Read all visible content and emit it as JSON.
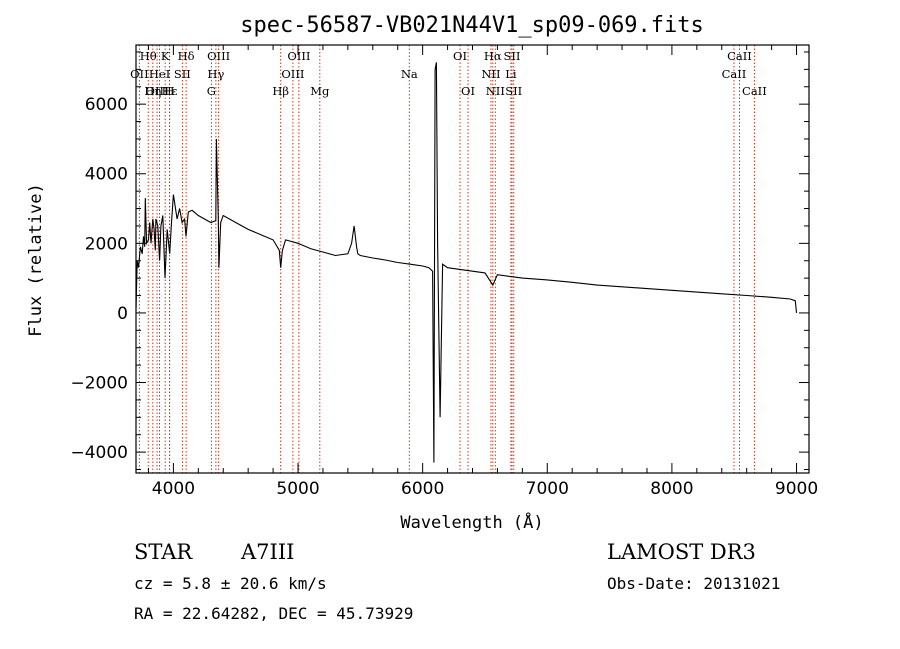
{
  "chart_data": {
    "type": "line",
    "title": "spec-56587-VB021N44V1_sp09-069.fits",
    "xlabel": "Wavelength (Å)",
    "ylabel": "Flux (relative)",
    "xlim": [
      3700,
      9100
    ],
    "ylim": [
      -4600,
      7700
    ],
    "x_ticks": [
      4000,
      5000,
      6000,
      7000,
      8000,
      9000
    ],
    "y_ticks": [
      -4000,
      -2000,
      0,
      2000,
      4000,
      6000
    ],
    "series": [
      {
        "name": "spectrum",
        "x": [
          3700,
          3710,
          3720,
          3735,
          3750,
          3760,
          3770,
          3775,
          3785,
          3800,
          3810,
          3820,
          3835,
          3845,
          3855,
          3860,
          3875,
          3889,
          3900,
          3915,
          3933,
          3950,
          3970,
          3985,
          4000,
          4030,
          4050,
          4070,
          4090,
          4101,
          4120,
          4150,
          4200,
          4250,
          4300,
          4340,
          4345,
          4360,
          4365,
          4380,
          4400,
          4500,
          4600,
          4700,
          4800,
          4850,
          4861,
          4875,
          4900,
          5000,
          5100,
          5200,
          5300,
          5400,
          5430,
          5450,
          5470,
          5480,
          5500,
          5600,
          5700,
          5800,
          5900,
          6000,
          6050,
          6080,
          6090,
          6100,
          6110,
          6120,
          6140,
          6160,
          6180,
          6200,
          6300,
          6400,
          6500,
          6563,
          6600,
          6700,
          6800,
          7000,
          7200,
          7400,
          7600,
          7800,
          8000,
          8200,
          8400,
          8600,
          8800,
          8950,
          8990,
          9000
        ],
        "y": [
          100,
          1500,
          1300,
          1900,
          1700,
          2200,
          1900,
          3300,
          2000,
          2100,
          2600,
          2000,
          2700,
          2400,
          1800,
          2700,
          2500,
          1500,
          2500,
          2800,
          1000,
          2400,
          1700,
          2600,
          3400,
          2700,
          3000,
          2600,
          2700,
          2200,
          2900,
          2950,
          2800,
          2700,
          2600,
          2650,
          5000,
          2700,
          1300,
          2600,
          2800,
          2600,
          2400,
          2250,
          2100,
          1800,
          1300,
          1800,
          2100,
          2000,
          1850,
          1750,
          1650,
          1700,
          2000,
          2500,
          1900,
          1700,
          1650,
          1580,
          1520,
          1450,
          1400,
          1350,
          1300,
          1200,
          -4300,
          7000,
          7200,
          2000,
          -3000,
          1400,
          1350,
          1300,
          1250,
          1200,
          1150,
          800,
          1100,
          1050,
          1000,
          950,
          880,
          800,
          750,
          700,
          650,
          600,
          550,
          500,
          450,
          400,
          350,
          0
        ]
      }
    ],
    "lines": [
      {
        "label": "Hθ",
        "wl": 3798,
        "row": 1
      },
      {
        "label": "OII",
        "wl": 3727,
        "row": 2
      },
      {
        "label": "OIII",
        "wl": 3869,
        "row": 3
      },
      {
        "label": "Hε",
        "wl": 3970,
        "row": 3
      },
      {
        "label": "Hη",
        "wl": 3835,
        "row": 3
      },
      {
        "label": "HeI",
        "wl": 3889,
        "row": 2
      },
      {
        "label": "K",
        "wl": 3934,
        "row": 1
      },
      {
        "label": "H",
        "wl": 3969,
        "row": 3
      },
      {
        "label": "SII",
        "wl": 4072,
        "row": 2
      },
      {
        "label": "Hδ",
        "wl": 4102,
        "row": 1
      },
      {
        "label": "OIII",
        "wl": 4363,
        "row": 1
      },
      {
        "label": "Hγ",
        "wl": 4341,
        "row": 2
      },
      {
        "label": "G",
        "wl": 4305,
        "row": 3
      },
      {
        "label": "Hβ",
        "wl": 4861,
        "row": 3
      },
      {
        "label": "OIII",
        "wl": 4959,
        "row": 2
      },
      {
        "label": "OIII",
        "wl": 5007,
        "row": 1
      },
      {
        "label": "Mg",
        "wl": 5175,
        "row": 3
      },
      {
        "label": "Na",
        "wl": 5893,
        "row": 2
      },
      {
        "label": "OI",
        "wl": 6300,
        "row": 1
      },
      {
        "label": "OI",
        "wl": 6364,
        "row": 3
      },
      {
        "label": "Hα",
        "wl": 6563,
        "row": 1
      },
      {
        "label": "NII",
        "wl": 6548,
        "row": 2
      },
      {
        "label": "NII",
        "wl": 6583,
        "row": 3
      },
      {
        "label": "SII",
        "wl": 6717,
        "row": 1
      },
      {
        "label": "SII",
        "wl": 6731,
        "row": 3
      },
      {
        "label": "Li",
        "wl": 6708,
        "row": 2
      },
      {
        "label": "CaII",
        "wl": 8542,
        "row": 1
      },
      {
        "label": "CaII",
        "wl": 8498,
        "row": 2
      },
      {
        "label": "CaII",
        "wl": 8662,
        "row": 3
      }
    ]
  },
  "info": {
    "class": "STAR",
    "subclass": "A7III",
    "survey": "LAMOST DR3",
    "cz": "cz = 5.8 ± 20.6 km/s",
    "obs_date": "Obs-Date: 20131021",
    "radec": "RA =  22.64282, DEC =  45.73929"
  },
  "colors": {
    "axis": "#000000",
    "spectrum": "#000000",
    "line_marker": "#cc2200"
  }
}
